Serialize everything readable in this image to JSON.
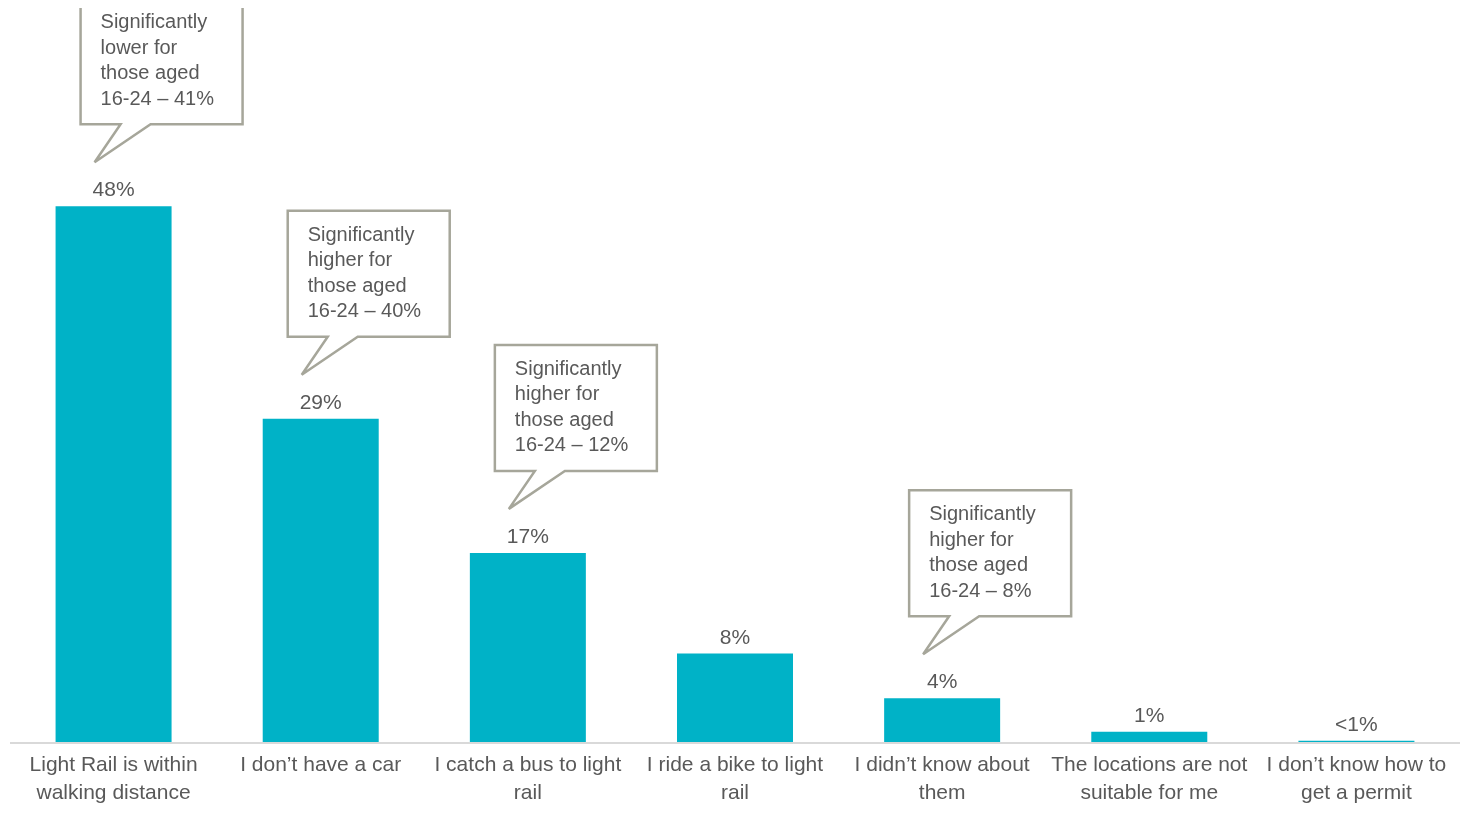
{
  "chart_data": {
    "type": "bar",
    "categories": [
      "Light Rail is within walking distance",
      "I don’t have a car",
      "I catch a bus to light rail",
      "I ride a bike to light rail",
      "I didn’t know about them",
      "The locations are not suitable for me",
      "I don’t know how to get a permit"
    ],
    "values": [
      48,
      29,
      17,
      8,
      4,
      1,
      0.2
    ],
    "value_labels": [
      "48%",
      "29%",
      "17%",
      "8%",
      "4%",
      "1%",
      "<1%"
    ],
    "color": "#00b2c7",
    "grid": false,
    "annotations": [
      "Significantly lower for those aged 16-24 – 41%",
      "Significantly higher for those aged 16-24 – 40%",
      "Significantly higher for those aged 16-24 – 12%",
      "Significantly higher for those aged 16-24 – 8%"
    ]
  }
}
